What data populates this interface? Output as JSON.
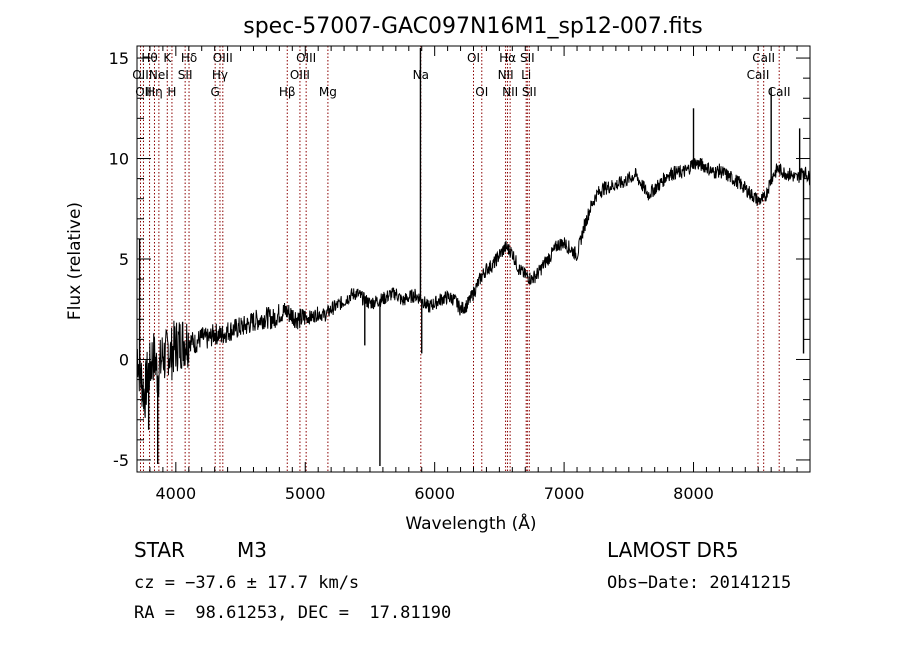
{
  "chart_data": {
    "type": "line",
    "title": "spec-57007-GAC097N16M1_sp12-007.fits",
    "xlabel": "Wavelength (Å)",
    "ylabel": "Flux (relative)",
    "xlim": [
      3700,
      8900
    ],
    "ylim": [
      -5.6,
      15.6
    ],
    "xticks": [
      4000,
      5000,
      6000,
      7000,
      8000
    ],
    "yticks": [
      -5,
      0,
      5,
      10,
      15
    ],
    "minor_xstep": 100,
    "minor_ystep": 1,
    "series": [
      {
        "x": [
          3700,
          3720,
          3740,
          3760,
          3780,
          3800,
          3820,
          3840,
          3860,
          3880,
          3900,
          3920,
          3940,
          3960,
          3980,
          4000,
          4050,
          4100,
          4150,
          4200,
          4250,
          4300,
          4350,
          4400,
          4450,
          4500,
          4550,
          4600,
          4650,
          4700,
          4750,
          4800,
          4850,
          4900,
          4950,
          5000,
          5050,
          5100,
          5150,
          5200,
          5250,
          5300,
          5350,
          5400,
          5450,
          5500,
          5550,
          5600,
          5650,
          5700,
          5750,
          5800,
          5850,
          5900,
          5950,
          6000,
          6050,
          6100,
          6150,
          6200,
          6250,
          6300,
          6350,
          6400,
          6450,
          6500,
          6550,
          6600,
          6650,
          6700,
          6750,
          6800,
          6850,
          6900,
          6950,
          7000,
          7050,
          7100,
          7150,
          7200,
          7250,
          7300,
          7350,
          7400,
          7450,
          7500,
          7550,
          7600,
          7650,
          7700,
          7750,
          7800,
          7850,
          7900,
          7950,
          8000,
          8050,
          8100,
          8150,
          8200,
          8250,
          8300,
          8350,
          8400,
          8450,
          8500,
          8550,
          8600,
          8650,
          8700,
          8750,
          8800,
          8850,
          8900
        ],
        "y": [
          0.5,
          -0.5,
          -1.2,
          -1.8,
          -0.8,
          -0.5,
          0.2,
          0.0,
          -0.8,
          -0.3,
          0.3,
          0.0,
          0.6,
          0.2,
          0.5,
          0.7,
          0.9,
          1.0,
          0.8,
          1.1,
          1.0,
          1.3,
          1.2,
          1.4,
          1.5,
          1.6,
          1.7,
          1.9,
          2.0,
          2.1,
          2.0,
          2.3,
          2.4,
          2.2,
          2.0,
          2.1,
          2.1,
          2.3,
          2.2,
          2.5,
          2.7,
          2.9,
          3.2,
          3.3,
          3.0,
          2.8,
          2.9,
          3.0,
          3.2,
          3.3,
          2.9,
          3.1,
          3.2,
          3.0,
          2.6,
          2.8,
          3.0,
          3.1,
          3.0,
          2.5,
          2.7,
          3.3,
          4.0,
          4.5,
          4.7,
          5.2,
          5.6,
          5.3,
          4.5,
          4.2,
          4.0,
          4.3,
          4.8,
          5.2,
          5.7,
          5.8,
          5.5,
          5.2,
          6.5,
          7.5,
          8.2,
          8.5,
          8.6,
          8.7,
          8.8,
          9.0,
          9.2,
          8.7,
          8.2,
          8.5,
          8.8,
          9.2,
          9.3,
          9.3,
          9.4,
          9.8,
          9.7,
          9.6,
          9.3,
          9.4,
          9.2,
          9.0,
          8.8,
          8.5,
          8.2,
          7.9,
          8.0,
          9.0,
          9.5,
          9.3,
          9.2,
          9.0,
          9.4,
          9.0
        ],
        "spikes": [
          {
            "x": 3720,
            "y": 6.0
          },
          {
            "x": 3790,
            "y": -3.5
          },
          {
            "x": 3860,
            "y": -5.2
          },
          {
            "x": 5460,
            "y": 0.7
          },
          {
            "x": 5577,
            "y": -5.3
          },
          {
            "x": 5890,
            "y": 15.5
          },
          {
            "x": 5900,
            "y": 0.3
          },
          {
            "x": 8000,
            "y": 12.5
          },
          {
            "x": 8600,
            "y": 13.5
          },
          {
            "x": 8820,
            "y": 11.5
          },
          {
            "x": 8850,
            "y": 0.3
          }
        ]
      }
    ],
    "lines": [
      {
        "x": 3727,
        "label": "OII",
        "row": 1
      },
      {
        "x": 3750,
        "label": "OII",
        "row": 2
      },
      {
        "x": 3797,
        "label": "Hθ",
        "row": 0
      },
      {
        "x": 3835,
        "label": "Hη",
        "row": 2
      },
      {
        "x": 3869,
        "label": "NeI",
        "row": 1
      },
      {
        "x": 3934,
        "label": "K",
        "row": 0
      },
      {
        "x": 3970,
        "label": "H",
        "row": 2
      },
      {
        "x": 4072,
        "label": "SII",
        "row": 1
      },
      {
        "x": 4102,
        "label": "Hδ",
        "row": 0
      },
      {
        "x": 4304,
        "label": "G",
        "row": 2
      },
      {
        "x": 4341,
        "label": "Hγ",
        "row": 1
      },
      {
        "x": 4363,
        "label": "OIII",
        "row": 0
      },
      {
        "x": 4861,
        "label": "Hβ",
        "row": 2
      },
      {
        "x": 4959,
        "label": "OIII",
        "row": 1
      },
      {
        "x": 5007,
        "label": "OIII",
        "row": 0
      },
      {
        "x": 5175,
        "label": "Mg",
        "row": 2
      },
      {
        "x": 5893,
        "label": "Na",
        "row": 1
      },
      {
        "x": 6300,
        "label": "OI",
        "row": 0
      },
      {
        "x": 6364,
        "label": "OI",
        "row": 2
      },
      {
        "x": 6548,
        "label": "NII",
        "row": 1
      },
      {
        "x": 6563,
        "label": "Hα",
        "row": 0
      },
      {
        "x": 6583,
        "label": "NII",
        "row": 2
      },
      {
        "x": 6707,
        "label": "Li",
        "row": 1
      },
      {
        "x": 6716,
        "label": "SII",
        "row": 0
      },
      {
        "x": 6731,
        "label": "SII",
        "row": 2
      },
      {
        "x": 8498,
        "label": "CaII",
        "row": 1
      },
      {
        "x": 8542,
        "label": "CaII",
        "row": 0
      },
      {
        "x": 8662,
        "label": "CaII",
        "row": 2
      }
    ]
  },
  "info": {
    "class_label": "STAR",
    "subclass": "M3",
    "survey": "LAMOST DR5",
    "cz_text": "cz = −37.6 ± 17.7 km/s",
    "obs_date": "Obs−Date: 20141215",
    "coords": "RA =  98.61253, DEC =  17.81190"
  },
  "colors": {
    "axis": "#000000",
    "spectrum": "#000000",
    "line_markers": "#8b0000"
  }
}
